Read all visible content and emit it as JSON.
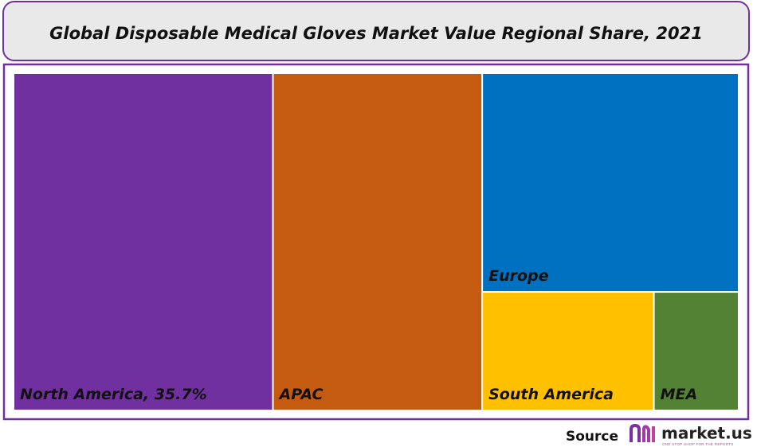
{
  "chart_data": {
    "type": "treemap",
    "title": "Global Disposable Medical Gloves Market Value Regional Share, 2021",
    "categories": [
      "North America, 35.7%",
      "APAC",
      "Europe",
      "South America",
      "MEA"
    ],
    "values": [
      35.7,
      28.8,
      22.9,
      8.3,
      4.1
    ],
    "colors": [
      "#7030a0",
      "#c55a11",
      "#0070c0",
      "#ffc000",
      "#548235"
    ]
  },
  "footer": {
    "source": "Source",
    "brand": "market.us",
    "tagline": "ONE STOP SHOP FOR THE REPORTS"
  }
}
